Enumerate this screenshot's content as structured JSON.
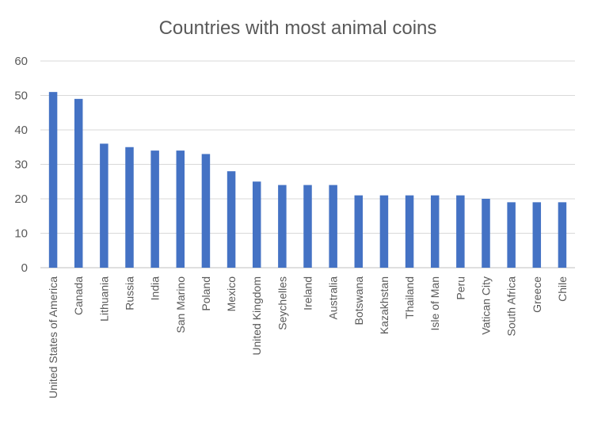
{
  "chart_data": {
    "type": "bar",
    "title": "Countries with most animal coins",
    "xlabel": "",
    "ylabel": "",
    "ylim": [
      0,
      60
    ],
    "yticks": [
      0,
      10,
      20,
      30,
      40,
      50,
      60
    ],
    "grid": true,
    "legend": "none",
    "bar_color": "#4472C4",
    "categories": [
      "United States of America",
      "Canada",
      "Lithuania",
      "Russia",
      "India",
      "San Marino",
      "Poland",
      "Mexico",
      "United Kingdom",
      "Seychelles",
      "Ireland",
      "Australia",
      "Botswana",
      "Kazakhstan",
      "Thailand",
      "Isle of Man",
      "Peru",
      "Vatican City",
      "South Africa",
      "Greece",
      "Chile"
    ],
    "values": [
      51,
      49,
      36,
      35,
      34,
      34,
      33,
      28,
      25,
      24,
      24,
      24,
      21,
      21,
      21,
      21,
      21,
      20,
      19,
      19,
      19
    ]
  }
}
